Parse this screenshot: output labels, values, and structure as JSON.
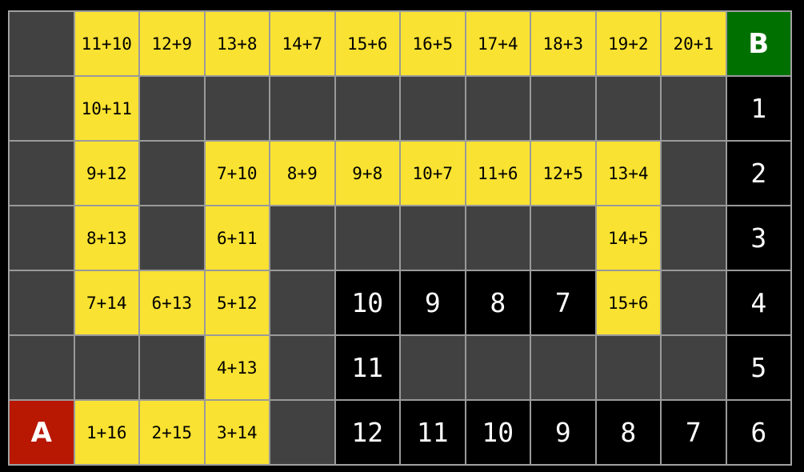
{
  "colors": {
    "gray": "#414141",
    "yellow": "#f9e231",
    "black": "#000000",
    "start": "#b81702",
    "goal": "#007000"
  },
  "rows": [
    [
      [
        "g",
        ""
      ],
      [
        "y",
        "11+10"
      ],
      [
        "y",
        "12+9"
      ],
      [
        "y",
        "13+8"
      ],
      [
        "y",
        "14+7"
      ],
      [
        "y",
        "15+6"
      ],
      [
        "y",
        "16+5"
      ],
      [
        "y",
        "17+4"
      ],
      [
        "y",
        "18+3"
      ],
      [
        "y",
        "19+2"
      ],
      [
        "y",
        "20+1"
      ],
      [
        "b",
        "B"
      ]
    ],
    [
      [
        "g",
        ""
      ],
      [
        "y",
        "10+11"
      ],
      [
        "g",
        ""
      ],
      [
        "g",
        ""
      ],
      [
        "g",
        ""
      ],
      [
        "g",
        ""
      ],
      [
        "g",
        ""
      ],
      [
        "g",
        ""
      ],
      [
        "g",
        ""
      ],
      [
        "g",
        ""
      ],
      [
        "g",
        ""
      ],
      [
        "k",
        "1"
      ]
    ],
    [
      [
        "g",
        ""
      ],
      [
        "y",
        "9+12"
      ],
      [
        "g",
        ""
      ],
      [
        "y",
        "7+10"
      ],
      [
        "y",
        "8+9"
      ],
      [
        "y",
        "9+8"
      ],
      [
        "y",
        "10+7"
      ],
      [
        "y",
        "11+6"
      ],
      [
        "y",
        "12+5"
      ],
      [
        "y",
        "13+4"
      ],
      [
        "g",
        ""
      ],
      [
        "k",
        "2"
      ]
    ],
    [
      [
        "g",
        ""
      ],
      [
        "y",
        "8+13"
      ],
      [
        "g",
        ""
      ],
      [
        "y",
        "6+11"
      ],
      [
        "g",
        ""
      ],
      [
        "g",
        ""
      ],
      [
        "g",
        ""
      ],
      [
        "g",
        ""
      ],
      [
        "g",
        ""
      ],
      [
        "y",
        "14+5"
      ],
      [
        "g",
        ""
      ],
      [
        "k",
        "3"
      ]
    ],
    [
      [
        "g",
        ""
      ],
      [
        "y",
        "7+14"
      ],
      [
        "y",
        "6+13"
      ],
      [
        "y",
        "5+12"
      ],
      [
        "g",
        ""
      ],
      [
        "k",
        "10"
      ],
      [
        "k",
        "9"
      ],
      [
        "k",
        "8"
      ],
      [
        "k",
        "7"
      ],
      [
        "y",
        "15+6"
      ],
      [
        "g",
        ""
      ],
      [
        "k",
        "4"
      ]
    ],
    [
      [
        "g",
        ""
      ],
      [
        "g",
        ""
      ],
      [
        "g",
        ""
      ],
      [
        "y",
        "4+13"
      ],
      [
        "g",
        ""
      ],
      [
        "k",
        "11"
      ],
      [
        "g",
        ""
      ],
      [
        "g",
        ""
      ],
      [
        "g",
        ""
      ],
      [
        "g",
        ""
      ],
      [
        "g",
        ""
      ],
      [
        "k",
        "5"
      ]
    ],
    [
      [
        "a",
        "A"
      ],
      [
        "y",
        "1+16"
      ],
      [
        "y",
        "2+15"
      ],
      [
        "y",
        "3+14"
      ],
      [
        "g",
        ""
      ],
      [
        "k",
        "12"
      ],
      [
        "k",
        "11"
      ],
      [
        "k",
        "10"
      ],
      [
        "k",
        "9"
      ],
      [
        "k",
        "8"
      ],
      [
        "k",
        "7"
      ],
      [
        "k",
        "6"
      ]
    ]
  ]
}
